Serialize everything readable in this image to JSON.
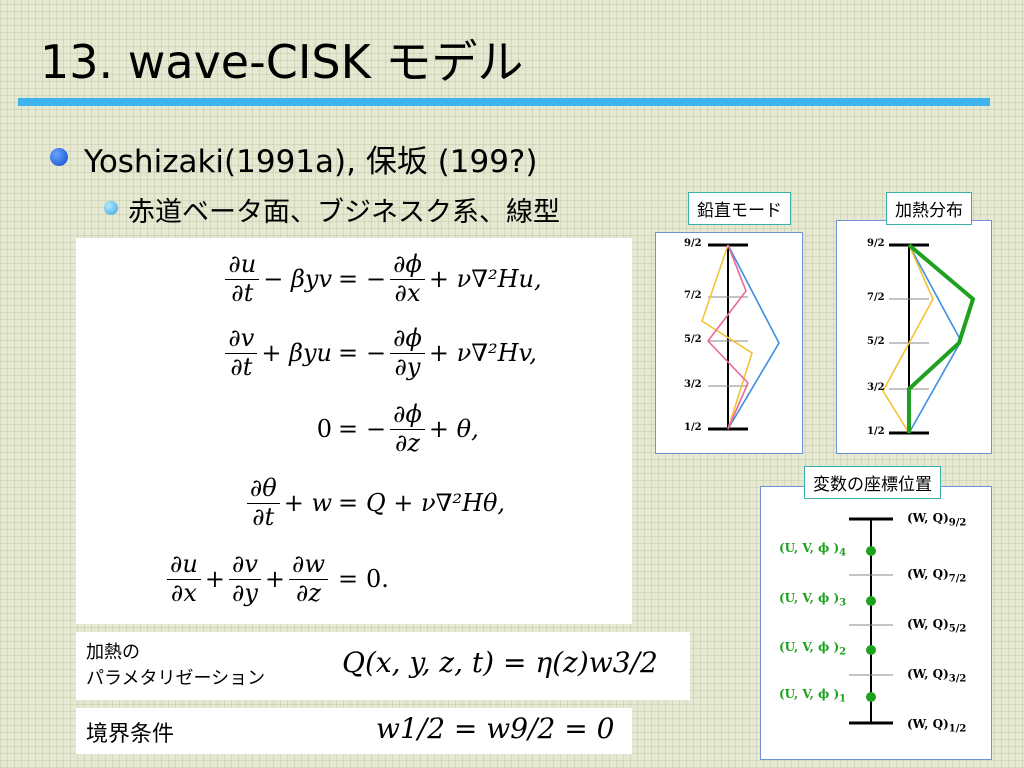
{
  "title": "13. wave-CISK モデル",
  "bullet1": "Yoshizaki(1991a), 保坂 (199?)",
  "bullet2": "赤道ベータ面、ブジネスク系、線型",
  "equations": {
    "eq_sign": "=",
    "partial": "∂",
    "row1": {
      "u": "u",
      "t": "t",
      "minus_beta_yv": "− βyv",
      "phi": "ϕ",
      "x": "x",
      "tail": "+ ν∇²Hu,"
    },
    "row2": {
      "v": "v",
      "t": "t",
      "plus_beta_yu": "+ βyu",
      "phi": "ϕ",
      "y": "y",
      "tail": "+ ν∇²Hv,"
    },
    "row3": {
      "lhs": "0",
      "phi": "ϕ",
      "z": "z",
      "tail": "+ θ,"
    },
    "row4": {
      "theta": "θ",
      "t": "t",
      "plus_w": "+ w",
      "rhs": "Q + ν∇²Hθ,"
    },
    "row5": {
      "u": "u",
      "x": "x",
      "v": "v",
      "y": "y",
      "w": "w",
      "z": "z",
      "rhs": "0."
    }
  },
  "heating_param": {
    "label_line1": "加熱の",
    "label_line2": "パラメタリゼーション",
    "formula": "Q(x, y, z, t) = η(z)w3/2"
  },
  "boundary": {
    "label": "境界条件",
    "formula": "w1/2 = w9/2 = 0"
  },
  "vertical_mode": {
    "tag": "鉛直モード",
    "levels": [
      "9/2",
      "7/2",
      "5/2",
      "3/2",
      "1/2"
    ]
  },
  "heating_profile": {
    "tag": "加熱分布",
    "levels": [
      "9/2",
      "7/2",
      "5/2",
      "3/2",
      "1/2"
    ]
  },
  "variable_positions": {
    "tag": "変数の座標位置",
    "wq_label": "(W, Q)",
    "wq_subs": [
      "9/2",
      "7/2",
      "5/2",
      "3/2",
      "1/2"
    ],
    "uv_label": "(U, V, ϕ )",
    "uv_subs": [
      "4",
      "3",
      "2",
      "1"
    ]
  },
  "colors": {
    "accent_rule": "#3fb3ec",
    "green": "#1ea11e",
    "blue": "#3d8fe0",
    "yellow": "#f3c433",
    "pink": "#ea6a9a"
  }
}
